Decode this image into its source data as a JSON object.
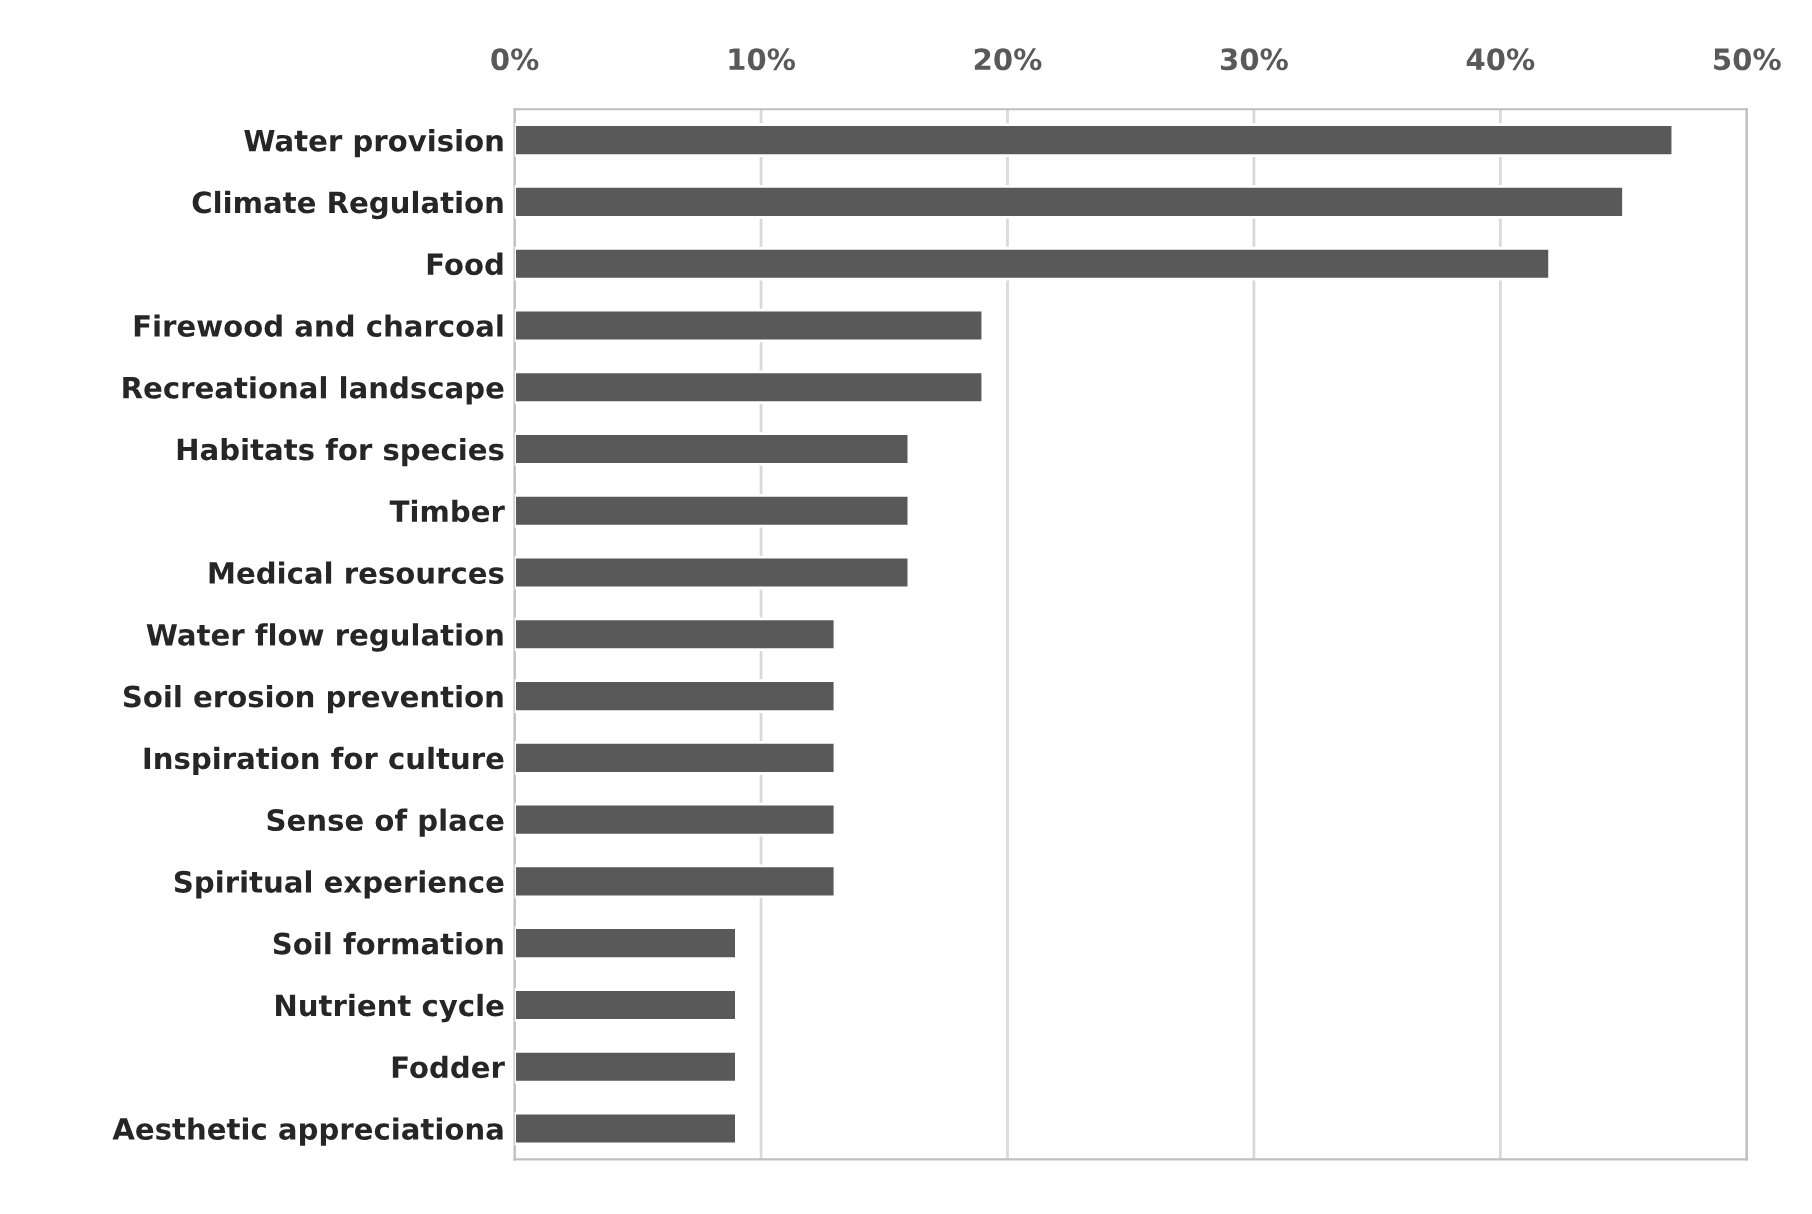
{
  "chart_data": {
    "type": "bar",
    "orientation": "horizontal",
    "categories": [
      "Water provision",
      "Climate Regulation",
      "Food",
      "Firewood and charcoal",
      "Recreational landscape",
      "Habitats for species",
      "Timber",
      "Medical resources",
      "Water flow regulation",
      "Soil erosion prevention",
      "Inspiration for culture",
      "Sense of place",
      "Spiritual experience",
      "Soil formation",
      "Nutrient cycle",
      "Fodder",
      "Aesthetic appreciationa"
    ],
    "values": [
      47,
      45,
      42,
      19,
      19,
      16,
      16,
      16,
      13,
      13,
      13,
      13,
      13,
      9,
      9,
      9,
      9
    ],
    "color": "#595959",
    "xlim": [
      0,
      50
    ],
    "xticks": [
      {
        "value": 0,
        "label": "0%"
      },
      {
        "value": 10,
        "label": "10%"
      },
      {
        "value": 20,
        "label": "20%"
      },
      {
        "value": 30,
        "label": "30%"
      },
      {
        "value": 40,
        "label": "40%"
      },
      {
        "value": 50,
        "label": "50%"
      }
    ],
    "grid": "x"
  }
}
